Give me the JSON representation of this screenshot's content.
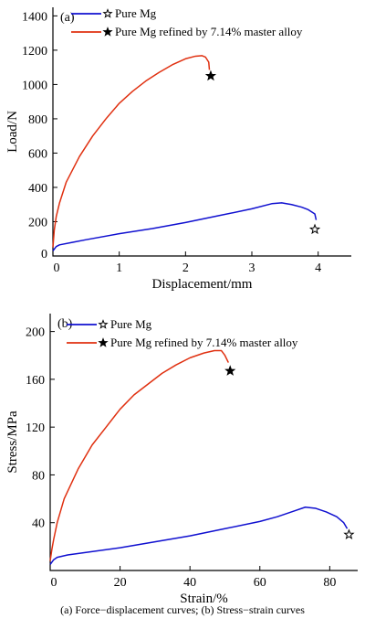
{
  "caption": "(a)  Force−displacement  curves; (b) Stress−strain curves",
  "colors": {
    "pure_mg": "#1010d0",
    "refined": "#e03010",
    "axis": "#000000"
  },
  "chart_data": [
    {
      "type": "line",
      "panel_label": "(a)",
      "xlabel": "Displacement/mm",
      "ylabel": "Load/N",
      "xlim": [
        0,
        4.5
      ],
      "ylim": [
        0,
        1450
      ],
      "xticks": [
        0,
        1,
        2,
        3,
        4
      ],
      "yticks": [
        200,
        400,
        600,
        800,
        1000,
        1200,
        1400
      ],
      "x_origin_label": "0",
      "y_origin_label": "0",
      "legend_position": "top-right",
      "series": [
        {
          "name": "Pure Mg",
          "color_key": "pure_mg",
          "marker": "hollow-star",
          "x": [
            0,
            0.05,
            0.1,
            0.3,
            0.5,
            1.0,
            1.5,
            2.0,
            2.5,
            3.0,
            3.3,
            3.45,
            3.6,
            3.75,
            3.85,
            3.95,
            3.97
          ],
          "y": [
            30,
            55,
            65,
            80,
            95,
            130,
            160,
            195,
            235,
            275,
            305,
            310,
            300,
            285,
            270,
            245,
            210
          ],
          "end_marker": {
            "x": 3.95,
            "y": 155
          }
        },
        {
          "name": "Pure Mg refined by 7.14% master alloy",
          "color_key": "refined",
          "marker": "filled-star",
          "x": [
            0,
            0.02,
            0.05,
            0.1,
            0.2,
            0.4,
            0.6,
            0.8,
            1.0,
            1.2,
            1.4,
            1.6,
            1.8,
            2.0,
            2.15,
            2.25,
            2.3,
            2.35,
            2.36
          ],
          "y": [
            50,
            150,
            230,
            310,
            430,
            580,
            700,
            800,
            890,
            960,
            1020,
            1070,
            1115,
            1150,
            1165,
            1168,
            1160,
            1130,
            1085
          ],
          "end_marker": {
            "x": 2.38,
            "y": 1050
          }
        }
      ]
    },
    {
      "type": "line",
      "panel_label": "(b)",
      "xlabel": "Strain/%",
      "ylabel": "Stress/MPa",
      "xlim": [
        0,
        88
      ],
      "ylim": [
        0,
        215
      ],
      "xticks": [
        0,
        20,
        40,
        60,
        80
      ],
      "yticks": [
        40,
        80,
        120,
        160,
        200
      ],
      "x_origin_label": "0",
      "y_origin_label": "",
      "legend_position": "top-right",
      "series": [
        {
          "name": "Pure Mg",
          "color_key": "pure_mg",
          "marker": "hollow-star",
          "x": [
            0,
            1,
            2,
            5,
            10,
            20,
            30,
            40,
            50,
            60,
            65,
            70,
            73,
            76,
            79,
            82,
            84,
            85
          ],
          "y": [
            5,
            9,
            11,
            13,
            15,
            19,
            24,
            29,
            35,
            41,
            45,
            50,
            53,
            52,
            49,
            45,
            40,
            35
          ],
          "end_marker": {
            "x": 85.5,
            "y": 30
          }
        },
        {
          "name": "Pure Mg refined by 7.14% master alloy",
          "color_key": "refined",
          "marker": "filled-star",
          "x": [
            0,
            0.5,
            1,
            2,
            4,
            8,
            12,
            16,
            20,
            24,
            28,
            32,
            36,
            40,
            44,
            47,
            49,
            50,
            51
          ],
          "y": [
            8,
            18,
            26,
            40,
            60,
            85,
            105,
            120,
            135,
            147,
            156,
            165,
            172,
            178,
            182,
            184,
            184,
            180,
            174
          ],
          "end_marker": {
            "x": 51.5,
            "y": 167
          }
        }
      ]
    }
  ]
}
